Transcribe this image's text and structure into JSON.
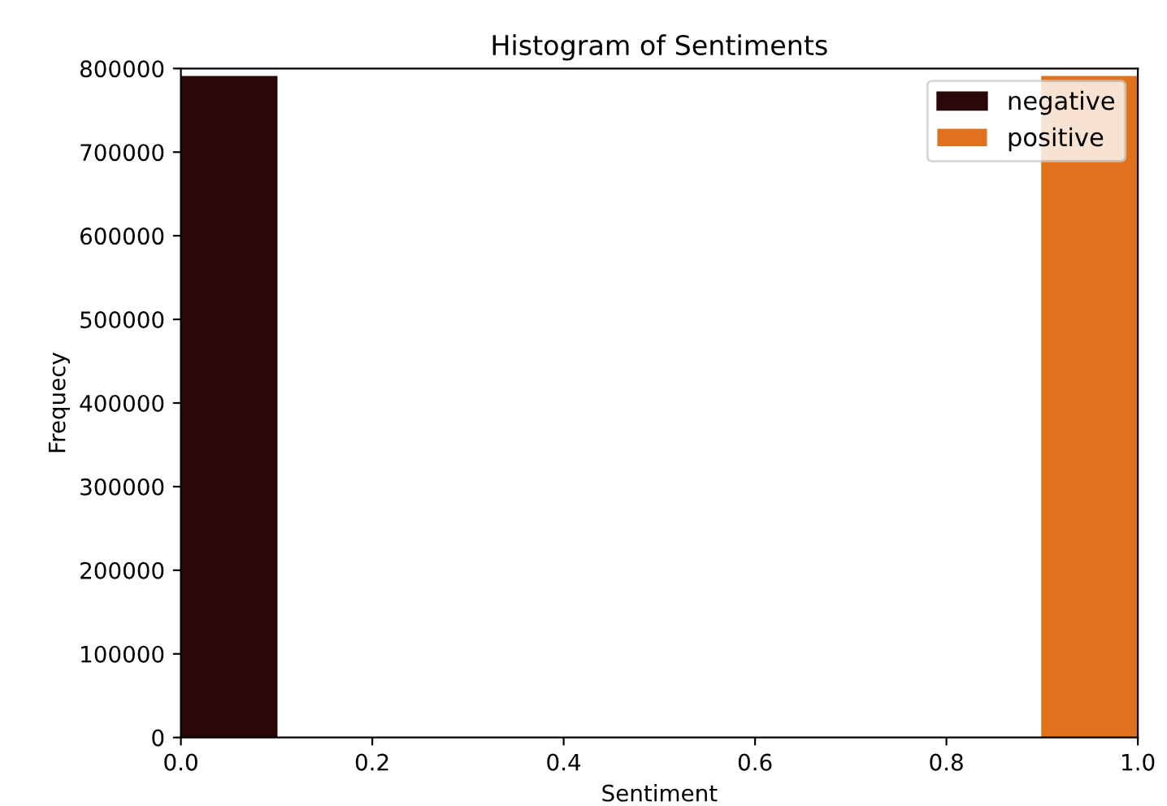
{
  "chart_data": {
    "type": "histogram",
    "title": "Histogram of Sentiments",
    "xlabel": "Sentiment",
    "ylabel": "Frequecy",
    "bins": [
      0.0,
      0.1,
      0.2,
      0.3,
      0.4,
      0.5,
      0.6,
      0.7,
      0.8,
      0.9,
      1.0
    ],
    "series": [
      {
        "name": "negative",
        "color": "#2a0808",
        "values": [
          790000,
          0,
          0,
          0,
          0,
          0,
          0,
          0,
          0,
          0
        ]
      },
      {
        "name": "positive",
        "color": "#e0721e",
        "values": [
          0,
          0,
          0,
          0,
          0,
          0,
          0,
          0,
          0,
          790000
        ]
      }
    ],
    "xlim": [
      0,
      1
    ],
    "ylim": [
      0,
      800000
    ],
    "xticks": [
      {
        "value": 0,
        "label": "0.0"
      },
      {
        "value": 0.2,
        "label": "0.2"
      },
      {
        "value": 0.4,
        "label": "0.4"
      },
      {
        "value": 0.6,
        "label": "0.6"
      },
      {
        "value": 0.8,
        "label": "0.8"
      },
      {
        "value": 1.0,
        "label": "1.0"
      }
    ],
    "yticks": [
      0,
      100000,
      200000,
      300000,
      400000,
      500000,
      600000,
      700000,
      800000
    ],
    "legend": "top right",
    "grid": false
  }
}
